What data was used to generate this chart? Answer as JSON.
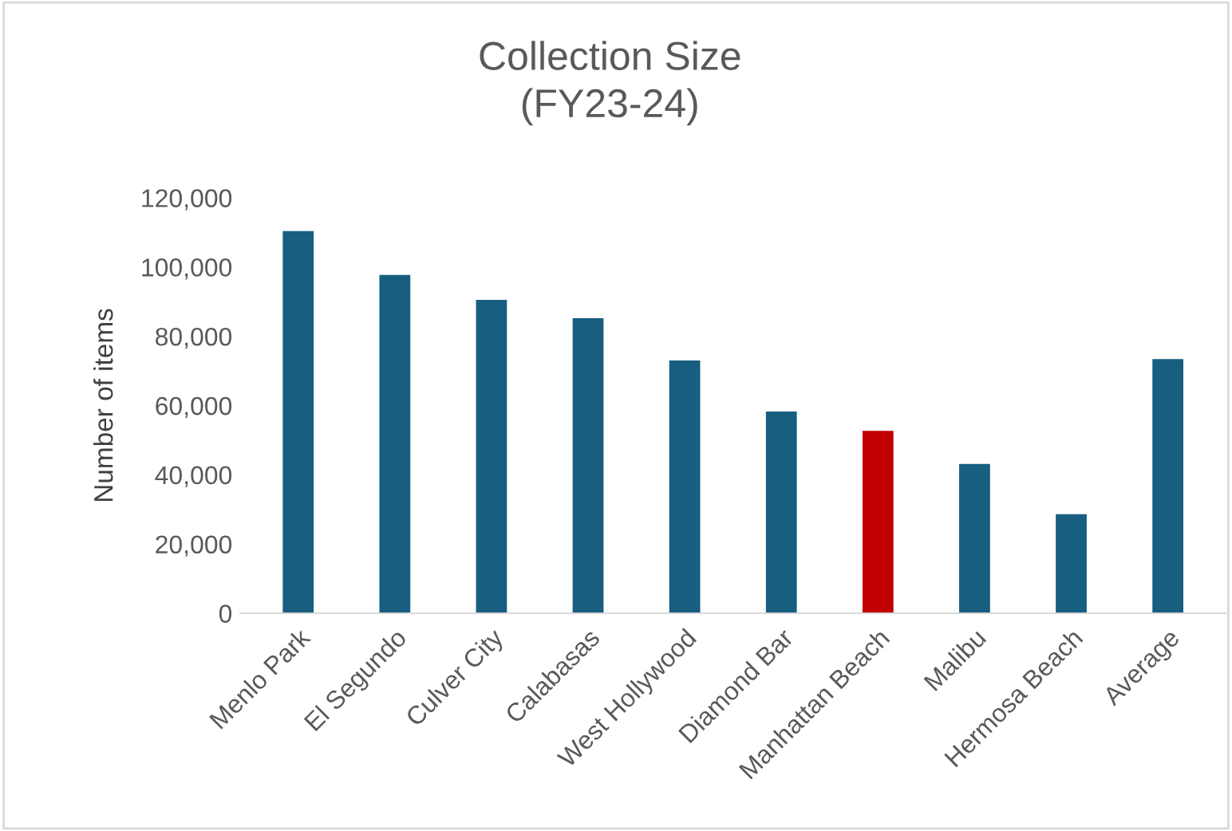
{
  "chart_data": {
    "type": "bar",
    "title": "Collection Size\n(FY23-24)",
    "ylabel": "Number of items",
    "categories": [
      "Menlo Park",
      "El Segundo",
      "Culver City",
      "Calabasas",
      "West Hollywood",
      "Diamond Bar",
      "Manhattan Beach",
      "Malibu",
      "Hermosa Beach",
      "Average"
    ],
    "values": [
      110400,
      97700,
      90500,
      85200,
      73000,
      58300,
      52700,
      43100,
      28600,
      73400
    ],
    "colors": [
      "#175e80",
      "#175e80",
      "#175e80",
      "#175e80",
      "#175e80",
      "#175e80",
      "#c00000",
      "#175e80",
      "#175e80",
      "#175e80"
    ],
    "ylim": [
      0,
      120000
    ],
    "yticks": [
      0,
      {
        "value": 20000,
        "label": "20,000"
      },
      {
        "value": 40000,
        "label": "40,000"
      },
      {
        "value": 60000,
        "label": "60,000"
      },
      {
        "value": 80000,
        "label": "80,000"
      },
      {
        "value": 100000,
        "label": "100,000"
      },
      {
        "value": 120000,
        "label": "120,000"
      }
    ],
    "grid": false,
    "legend": false
  }
}
